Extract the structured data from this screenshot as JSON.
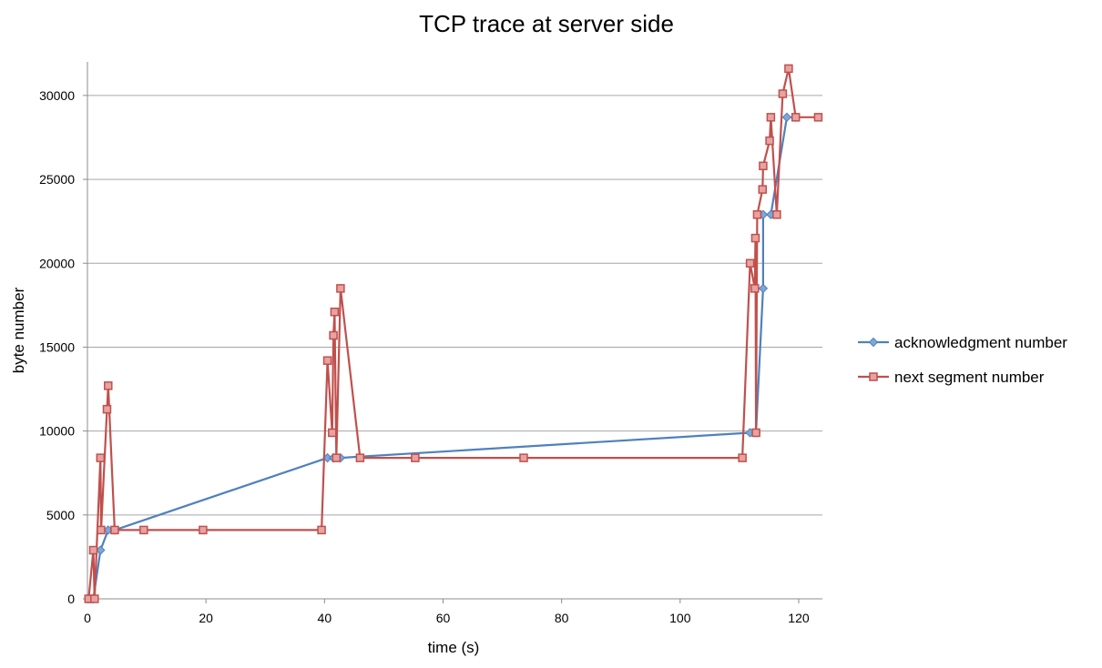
{
  "chart_data": {
    "type": "line",
    "title": "TCP trace at server side",
    "xlabel": "time (s)",
    "ylabel": "byte number",
    "xlim": [
      0,
      124
    ],
    "ylim": [
      0,
      32000
    ],
    "xticks": [
      0,
      20,
      40,
      60,
      80,
      100,
      120
    ],
    "yticks": [
      0,
      5000,
      10000,
      15000,
      20000,
      25000,
      30000
    ],
    "grid": "horizontal",
    "legend_position": "right",
    "series": [
      {
        "name": "acknowledgment number",
        "color": "#4f81bd",
        "marker": "diamond",
        "points": [
          [
            0.3,
            0
          ],
          [
            1.0,
            0
          ],
          [
            2.2,
            2900
          ],
          [
            3.5,
            4100
          ],
          [
            4.6,
            4100
          ],
          [
            40.5,
            8400
          ],
          [
            41.5,
            8400
          ],
          [
            42.7,
            8400
          ],
          [
            111.8,
            9900
          ],
          [
            112.8,
            9900
          ],
          [
            114.0,
            18500
          ],
          [
            114.0,
            22900
          ],
          [
            115.3,
            22900
          ],
          [
            118.0,
            28700
          ],
          [
            119.5,
            28700
          ]
        ]
      },
      {
        "name": "next segment number",
        "color": "#c0504d",
        "marker": "square",
        "points": [
          [
            0.2,
            0
          ],
          [
            1.0,
            2900
          ],
          [
            1.2,
            0
          ],
          [
            2.2,
            8400
          ],
          [
            2.3,
            4100
          ],
          [
            3.3,
            11300
          ],
          [
            3.5,
            12700
          ],
          [
            4.6,
            4100
          ],
          [
            9.5,
            4100
          ],
          [
            19.5,
            4100
          ],
          [
            39.5,
            4100
          ],
          [
            40.5,
            14200
          ],
          [
            41.3,
            9900
          ],
          [
            41.5,
            15700
          ],
          [
            41.7,
            17100
          ],
          [
            42.0,
            8400
          ],
          [
            42.7,
            18500
          ],
          [
            46.0,
            8400
          ],
          [
            55.3,
            8400
          ],
          [
            73.6,
            8400
          ],
          [
            110.5,
            8400
          ],
          [
            111.8,
            20000
          ],
          [
            112.6,
            18500
          ],
          [
            112.7,
            21500
          ],
          [
            112.8,
            9900
          ],
          [
            113.0,
            22900
          ],
          [
            113.9,
            24400
          ],
          [
            114.0,
            25800
          ],
          [
            115.1,
            27300
          ],
          [
            115.3,
            28700
          ],
          [
            116.3,
            22900
          ],
          [
            117.3,
            30100
          ],
          [
            118.3,
            31600
          ],
          [
            119.5,
            28700
          ],
          [
            123.3,
            28700
          ]
        ]
      }
    ]
  }
}
